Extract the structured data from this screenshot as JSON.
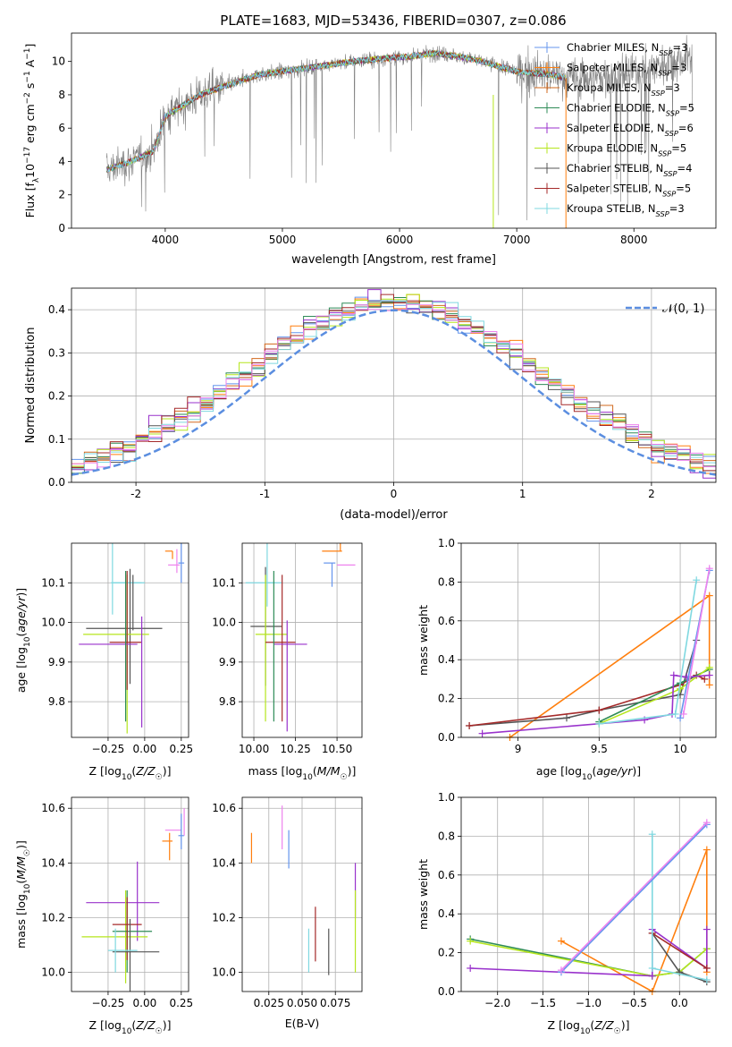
{
  "figure_title": "PLATE=1683, MJD=53436, FIBERID=0307, z=0.086",
  "colors": {
    "Chabrier MILES": "#6495ed",
    "Salpeter MILES": "#ff7f0e",
    "Kroupa MILES": "#d2691e",
    "Chabrier ELODIE": "#2e8b57",
    "Salpeter ELODIE": "#9932cc",
    "Kroupa ELODIE": "#b5e61d",
    "Chabrier STELIB": "#555555",
    "Salpeter STELIB": "#a52a2a",
    "Kroupa STELIB": "#7fd8e0",
    "pink": "#ee82ee",
    "data": "#808080",
    "normal": "#5b8ee0"
  },
  "chart_data": [
    {
      "id": "spectrum",
      "type": "line",
      "title": "PLATE=1683, MJD=53436, FIBERID=0307, z=0.086",
      "xlabel": "wavelength [Angstrom, rest frame]",
      "ylabel_parts": [
        "Flux [f",
        "λ",
        "10",
        "−17",
        " erg cm",
        "−2",
        " s",
        "−1",
        " A",
        "−1",
        "]"
      ],
      "xlim": [
        3200,
        8700
      ],
      "ylim": [
        0,
        11.7
      ],
      "xticks": [
        4000,
        5000,
        6000,
        7000,
        8000
      ],
      "yticks": [
        0,
        2,
        4,
        6,
        8,
        10
      ],
      "grid": false,
      "legend_placement": "top-right",
      "legend": [
        {
          "label": "Chabrier MILES, N",
          "sub": "SSP",
          "suffix": "=3",
          "color": "#6495ed"
        },
        {
          "label": "Salpeter MILES, N",
          "sub": "SSP",
          "suffix": "=3",
          "color": "#ff7f0e"
        },
        {
          "label": "Kroupa MILES, N",
          "sub": "SSP",
          "suffix": "=3",
          "color": "#d2691e"
        },
        {
          "label": "Chabrier ELODIE, N",
          "sub": "SSP",
          "suffix": "=5",
          "color": "#2e8b57"
        },
        {
          "label": "Salpeter ELODIE, N",
          "sub": "SSP",
          "suffix": "=6",
          "color": "#9932cc"
        },
        {
          "label": "Kroupa ELODIE, N",
          "sub": "SSP",
          "suffix": "=5",
          "color": "#b5e61d"
        },
        {
          "label": "Chabrier STELIB, N",
          "sub": "SSP",
          "suffix": "=4",
          "color": "#555555"
        },
        {
          "label": "Salpeter STELIB, N",
          "sub": "SSP",
          "suffix": "=5",
          "color": "#a52a2a"
        },
        {
          "label": "Kroupa STELIB, N",
          "sub": "SSP",
          "suffix": "=3",
          "color": "#7fd8e0"
        }
      ],
      "continuum": {
        "wavelength": [
          3500,
          3700,
          3900,
          4000,
          4300,
          4500,
          4800,
          5000,
          5300,
          5600,
          5900,
          6100,
          6300,
          6500,
          6700,
          7000,
          7300,
          7420,
          7700,
          8000,
          8300,
          8700
        ],
        "flux": [
          3.5,
          4.0,
          4.6,
          6.7,
          8.0,
          8.5,
          9.2,
          9.4,
          9.7,
          10.0,
          10.2,
          10.3,
          10.5,
          10.3,
          10.0,
          9.4,
          9.2,
          9.0,
          9.0,
          9.3,
          10.0,
          10.5
        ]
      },
      "model_range": [
        3500,
        7420
      ],
      "data_range": [
        3500,
        8500
      ]
    },
    {
      "id": "residuals",
      "type": "histogram",
      "xlabel": "(data-model)/error",
      "ylabel": "Normed distribution",
      "xlim": [
        -2.5,
        2.5
      ],
      "ylim": [
        0,
        0.45
      ],
      "xticks": [
        -2,
        -1,
        0,
        1,
        2
      ],
      "yticks": [
        0.0,
        0.1,
        0.2,
        0.3,
        0.4
      ],
      "grid": true,
      "legend_placement": "top-right",
      "legend": [
        {
          "label": "𝒩(0, 1)",
          "color": "#5b8ee0"
        }
      ],
      "bin_width": 0.1
    },
    {
      "id": "age-z",
      "type": "errorbar",
      "xlabel": "Z [log10(Z/Z☉)]",
      "ylabel": "age  [log10(age/yr)]",
      "xlim": [
        -0.5,
        0.3
      ],
      "ylim": [
        9.71,
        10.2
      ],
      "xticks": [
        -0.25,
        0.0,
        0.25
      ],
      "xtick_labels": [
        "−0.25",
        "0.00",
        "0.25"
      ],
      "yticks": [
        9.8,
        9.9,
        10.0,
        10.1
      ],
      "grid": true
    },
    {
      "id": "age-mass",
      "type": "errorbar",
      "xlabel": "mass [log10(M/M☉)]",
      "xlim": [
        9.93,
        10.65
      ],
      "ylim": [
        9.71,
        10.2
      ],
      "xticks": [
        10.0,
        10.25,
        10.5
      ],
      "xtick_labels": [
        "10.00",
        "10.25",
        "10.50"
      ],
      "yticks": [
        9.8,
        9.9,
        10.0,
        10.1
      ],
      "grid": true
    },
    {
      "id": "mw-age",
      "type": "line",
      "xlabel": "age  [log10(age/yr)]",
      "ylabel": "mass weight",
      "xlim": [
        8.65,
        10.22
      ],
      "ylim": [
        0,
        1.0
      ],
      "xticks": [
        9.0,
        9.5,
        10.0
      ],
      "yticks": [
        0.0,
        0.2,
        0.4,
        0.6,
        0.8,
        1.0
      ],
      "grid": true,
      "series": [
        {
          "key": "Salpeter MILES",
          "x": [
            8.95,
            10.18,
            10.18
          ],
          "y": [
            0.0,
            0.73,
            0.27
          ]
        },
        {
          "key": "Chabrier STELIB",
          "x": [
            8.7,
            9.3,
            9.5,
            10.0,
            10.1
          ],
          "y": [
            0.06,
            0.1,
            0.14,
            0.22,
            0.5
          ]
        },
        {
          "key": "Salpeter STELIB",
          "x": [
            8.7,
            9.5,
            10.0,
            10.1,
            10.15
          ],
          "y": [
            0.06,
            0.14,
            0.27,
            0.32,
            0.3
          ]
        },
        {
          "key": "Chabrier ELODIE",
          "x": [
            9.5,
            10.0,
            10.18
          ],
          "y": [
            0.08,
            0.28,
            0.35
          ]
        },
        {
          "key": "Kroupa ELODIE",
          "x": [
            9.5,
            10.0,
            10.18
          ],
          "y": [
            0.07,
            0.25,
            0.36
          ]
        },
        {
          "key": "Salpeter ELODIE",
          "x": [
            8.78,
            9.78,
            9.95,
            9.96,
            10.04,
            10.18
          ],
          "y": [
            0.02,
            0.09,
            0.12,
            0.32,
            0.31,
            0.32
          ]
        },
        {
          "key": "Kroupa STELIB",
          "x": [
            9.5,
            9.97,
            10.1
          ],
          "y": [
            0.07,
            0.12,
            0.81
          ]
        },
        {
          "key": "Chabrier MILES",
          "x": [
            10.0,
            10.18
          ],
          "y": [
            0.1,
            0.86
          ]
        },
        {
          "key": "pink",
          "x": [
            10.02,
            10.18
          ],
          "y": [
            0.12,
            0.87
          ]
        }
      ]
    },
    {
      "id": "mass-z",
      "type": "errorbar",
      "xlabel": "Z [log10(Z/Z☉)]",
      "ylabel": "mass [log10(M/M☉)]",
      "xlim": [
        -0.5,
        0.3
      ],
      "ylim": [
        9.93,
        10.64
      ],
      "xticks": [
        -0.25,
        0.0,
        0.25
      ],
      "xtick_labels": [
        "−0.25",
        "0.00",
        "0.25"
      ],
      "yticks": [
        10.0,
        10.2,
        10.4,
        10.6
      ],
      "grid": true
    },
    {
      "id": "mass-ebv",
      "type": "errorbar",
      "xlabel": "E(B-V)",
      "xlim": [
        0.005,
        0.095
      ],
      "ylim": [
        9.93,
        10.64
      ],
      "xticks": [
        0.025,
        0.05,
        0.075
      ],
      "xtick_labels": [
        "0.025",
        "0.050",
        "0.075"
      ],
      "yticks": [
        10.0,
        10.2,
        10.4,
        10.6
      ],
      "grid": true
    },
    {
      "id": "mw-z",
      "type": "line",
      "xlabel": "Z [log10(Z/Z☉)]",
      "ylabel": "mass weight",
      "xlim": [
        -2.4,
        0.4
      ],
      "ylim": [
        0,
        1.0
      ],
      "xticks": [
        -2.0,
        -1.5,
        -1.0,
        -0.5,
        0.0
      ],
      "xtick_labels": [
        "−2.0",
        "−1.5",
        "−1.0",
        "−0.5",
        "0.0"
      ],
      "yticks": [
        0.0,
        0.2,
        0.4,
        0.6,
        0.8,
        1.0
      ],
      "grid": true,
      "series": [
        {
          "key": "Salpeter MILES",
          "x": [
            -1.3,
            -0.3,
            0.3,
            0.3
          ],
          "y": [
            0.26,
            0.0,
            0.73,
            0.1
          ]
        },
        {
          "key": "Chabrier ELODIE",
          "x": [
            -2.3,
            -0.3,
            0.0,
            0.3
          ],
          "y": [
            0.27,
            0.08,
            0.1,
            0.22
          ]
        },
        {
          "key": "Kroupa ELODIE",
          "x": [
            -2.3,
            -0.3,
            0.0,
            0.3
          ],
          "y": [
            0.26,
            0.08,
            0.1,
            0.22
          ]
        },
        {
          "key": "Salpeter ELODIE",
          "x": [
            -2.3,
            -0.3,
            -0.3,
            0.3,
            0.3
          ],
          "y": [
            0.12,
            0.08,
            0.32,
            0.12,
            0.32
          ]
        },
        {
          "key": "Chabrier STELIB",
          "x": [
            -0.3,
            0.0,
            0.3
          ],
          "y": [
            0.3,
            0.1,
            0.05
          ]
        },
        {
          "key": "Salpeter STELIB",
          "x": [
            -0.3,
            0.3
          ],
          "y": [
            0.3,
            0.12
          ]
        },
        {
          "key": "Kroupa STELIB",
          "x": [
            -0.3,
            -0.3,
            0.3
          ],
          "y": [
            0.81,
            0.12,
            0.06
          ]
        },
        {
          "key": "Chabrier MILES",
          "x": [
            -1.3,
            0.3
          ],
          "y": [
            0.1,
            0.86
          ]
        },
        {
          "key": "pink",
          "x": [
            -1.3,
            0.3
          ],
          "y": [
            0.11,
            0.87
          ]
        }
      ]
    }
  ]
}
